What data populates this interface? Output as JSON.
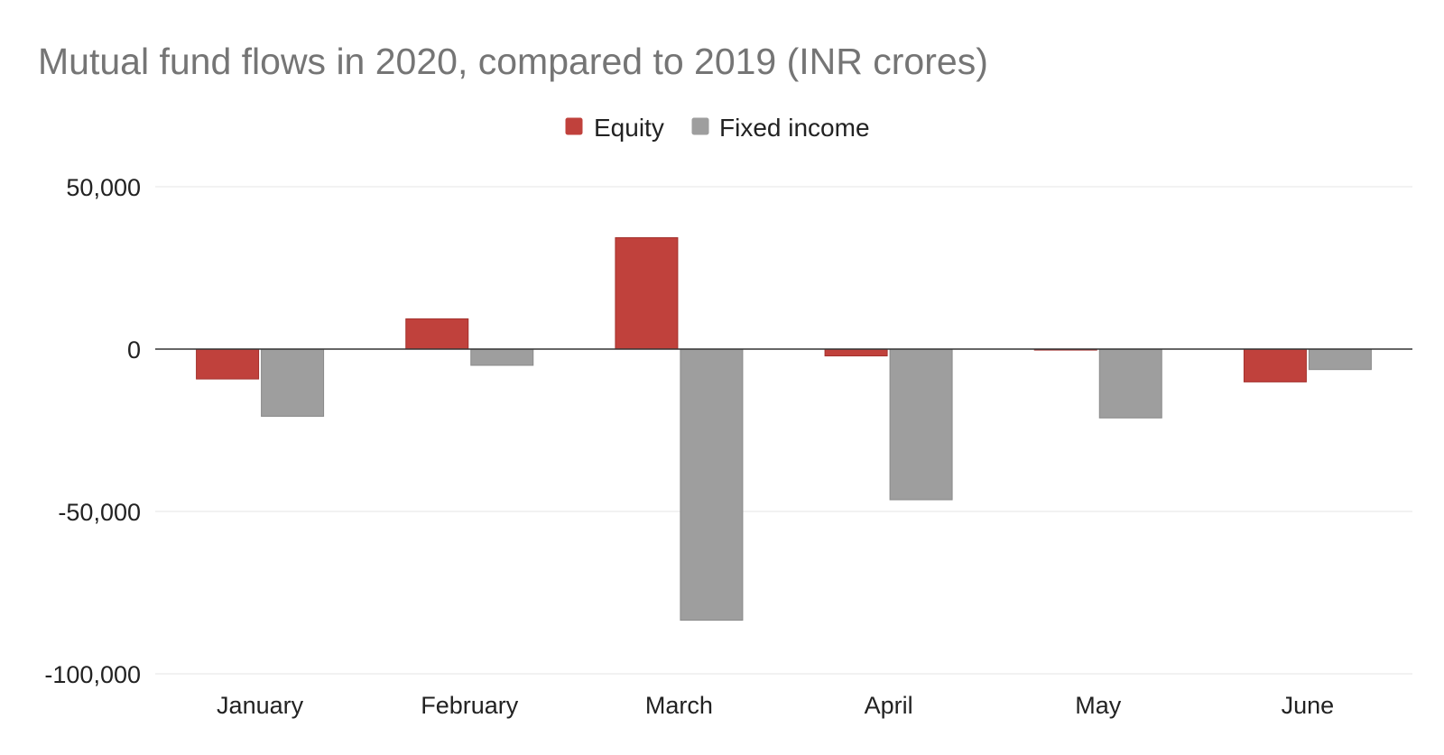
{
  "chart_data": {
    "type": "bar",
    "title": "Mutual fund flows in 2020, compared to 2019 (INR crores)",
    "xlabel": "",
    "ylabel": "",
    "categories": [
      "January",
      "February",
      "March",
      "April",
      "May",
      "June"
    ],
    "series": [
      {
        "name": "Equity",
        "color": "#c0413c",
        "values": [
          -9200,
          9300,
          34300,
          -2100,
          -300,
          -10100
        ]
      },
      {
        "name": "Fixed income",
        "color": "#9e9e9e",
        "values": [
          -20700,
          -5000,
          -83500,
          -46400,
          -21200,
          -6300
        ]
      }
    ],
    "ylim": [
      -100000,
      50000
    ],
    "yticks": [
      50000,
      0,
      -50000,
      -100000
    ],
    "ytick_labels": [
      "50,000",
      "0",
      "-50,000",
      "-100,000"
    ],
    "grid": true,
    "legend_position": "top-center"
  }
}
